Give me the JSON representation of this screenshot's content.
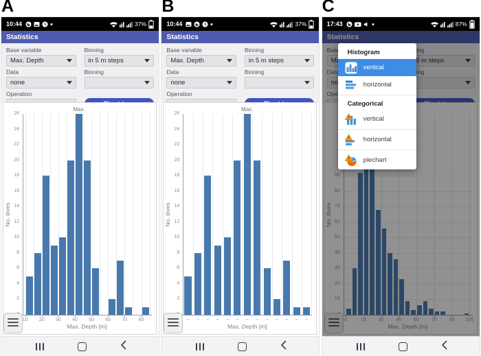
{
  "colors": {
    "header": "#4e5bb0",
    "button": "#4252c5",
    "bar": "#4879ad",
    "menu_highlight": "#3d8de5",
    "status_bg": "#000000",
    "dim": "rgba(10,10,14,0.45)"
  },
  "panels": [
    {
      "figure_label": "A",
      "status": {
        "time": "10:44",
        "battery_pct": "37%",
        "left_icons": [
          "whatsapp-icon",
          "gallery-icon",
          "clock-icon",
          "notification-dot-icon"
        ],
        "right_icons": [
          "wifi-icon",
          "volte-icon",
          "cellular-icon"
        ]
      },
      "header": {
        "title": "Statistics"
      },
      "form": {
        "fields": [
          {
            "name": "base-variable",
            "label": "Base variable",
            "value": "Max. Depth"
          },
          {
            "name": "binning",
            "label": "Binning",
            "value": "in 5 m steps"
          },
          {
            "name": "data",
            "label": "Data",
            "value": "none"
          },
          {
            "name": "data-binning",
            "label": "Binning",
            "value": ""
          },
          {
            "name": "operation",
            "label": "Operation",
            "value": ""
          }
        ],
        "chart_type_button": "Chart type"
      }
    },
    {
      "figure_label": "B",
      "status": {
        "time": "10:44",
        "battery_pct": "37%",
        "left_icons": [
          "gallery-icon",
          "whatsapp-icon",
          "clock-icon",
          "notification-dot-icon"
        ],
        "right_icons": [
          "wifi-icon",
          "volte-icon",
          "cellular-icon"
        ]
      },
      "header": {
        "title": "Statistics"
      },
      "form": {
        "fields": [
          {
            "name": "base-variable",
            "label": "Base variable",
            "value": "Max. Depth"
          },
          {
            "name": "binning",
            "label": "Binning",
            "value": "in 5 m steps"
          },
          {
            "name": "data",
            "label": "Data",
            "value": "none"
          },
          {
            "name": "data-binning",
            "label": "Binning",
            "value": ""
          },
          {
            "name": "operation",
            "label": "Operation",
            "value": ""
          }
        ],
        "chart_type_button": "Chart type"
      }
    },
    {
      "figure_label": "C",
      "status": {
        "time": "17:43",
        "battery_pct": "87%",
        "left_icons": [
          "whatsapp-icon",
          "youtube-icon",
          "speaker-icon",
          "notification-dot-icon"
        ],
        "right_icons": [
          "wifi-icon",
          "volte-icon",
          "cellular-icon"
        ]
      },
      "header": {
        "title": "Statistics"
      },
      "form": {
        "fields": [
          {
            "name": "base-variable",
            "label": "Base variable",
            "value": "Max. Depth"
          },
          {
            "name": "binning",
            "label": "Binning",
            "value": "in 5 m steps"
          },
          {
            "name": "data",
            "label": "Data",
            "value": "none"
          },
          {
            "name": "data-binning",
            "label": "Binning",
            "value": ""
          },
          {
            "name": "operation",
            "label": "Operation",
            "value": ""
          }
        ],
        "chart_type_button": "Chart type"
      }
    }
  ],
  "chart_data": [
    {
      "type": "bar",
      "variant": "histogram-vertical",
      "panel": "A",
      "title": "",
      "xlabel": "Max. Depth [m]",
      "ylabel": "No. dives",
      "bin_start": 10,
      "bin_width": 5,
      "values": [
        5,
        8,
        18,
        9,
        10,
        20,
        26,
        20,
        6,
        0,
        2,
        7,
        1,
        0,
        1
      ],
      "xlim": [
        8.5,
        86
      ],
      "ylim": [
        0,
        26
      ],
      "xticks": [
        10,
        20,
        30,
        40,
        50,
        60,
        70,
        80
      ],
      "yticks": [
        0,
        2,
        4,
        6,
        8,
        10,
        12,
        14,
        16,
        18,
        20,
        22,
        24,
        26
      ],
      "grid_x": [
        10,
        15,
        20,
        25,
        30,
        35,
        40,
        45,
        50,
        55,
        60,
        65,
        70,
        75,
        80,
        85
      ],
      "grid_y": [],
      "annotation": {
        "text": "Max.",
        "bar_index": 6
      }
    },
    {
      "type": "bar",
      "variant": "histogram-vertical-packed",
      "panel": "B",
      "title": "",
      "xlabel": "Max. Depth [m]",
      "ylabel": "No. dives",
      "values": [
        5,
        8,
        18,
        9,
        10,
        20,
        26,
        20,
        6,
        2,
        7,
        1,
        1
      ],
      "xtick_labels": [
        "–",
        "–",
        "–",
        "–",
        "–",
        "–",
        "–",
        "–",
        "–",
        "–",
        "–",
        "–",
        "–"
      ],
      "ylim": [
        0,
        26
      ],
      "yticks": [
        0,
        2,
        4,
        6,
        8,
        10,
        12,
        14,
        16,
        18,
        20,
        22,
        24,
        26
      ],
      "grid_y": [],
      "annotation": {
        "text": "Max.",
        "bar_index": 6
      }
    },
    {
      "type": "bar",
      "variant": "histogram-vertical",
      "panel": "C",
      "title": "",
      "xlabel": "Max. Depth [m]",
      "ylabel": "No. dives",
      "bin_start": 0,
      "bin_width": 5,
      "values": [
        4,
        30,
        92,
        125,
        125,
        68,
        56,
        40,
        36,
        23,
        9,
        3,
        6,
        9,
        4,
        2,
        2,
        0,
        0,
        0,
        1
      ],
      "xlim": [
        -2,
        107
      ],
      "ylim": [
        0,
        130
      ],
      "xticks": [
        0,
        15,
        30,
        45,
        60,
        75,
        90,
        105
      ],
      "yticks": [
        0,
        10,
        20,
        30,
        40,
        50,
        60,
        70,
        80,
        90
      ],
      "grid_x": [
        15,
        30,
        45,
        60,
        75,
        90,
        105
      ],
      "grid_y": [
        10,
        20,
        30,
        40,
        50,
        60,
        70,
        80,
        90
      ]
    }
  ],
  "menu": {
    "panel_index": 2,
    "sections": [
      {
        "title": "Histogram",
        "items": [
          {
            "label": "vertical",
            "icon": "histogram-vertical-icon",
            "selected": true
          },
          {
            "label": "horizontal",
            "icon": "histogram-horizontal-icon",
            "selected": false
          }
        ]
      },
      {
        "title": "Categorical",
        "items": [
          {
            "label": "vertical",
            "icon": "categorical-vertical-icon",
            "selected": false
          },
          {
            "label": "horizontal",
            "icon": "categorical-horizontal-icon",
            "selected": false
          },
          {
            "label": "piechart",
            "icon": "categorical-piechart-icon",
            "selected": false
          }
        ]
      }
    ]
  }
}
